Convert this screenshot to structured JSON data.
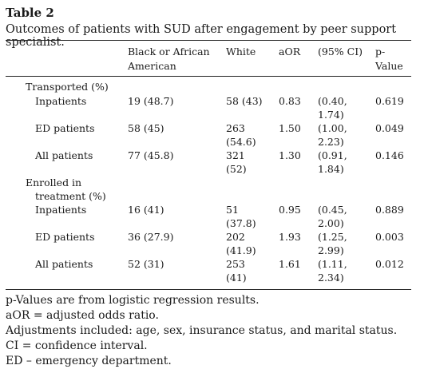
{
  "table": {
    "title": "Table 2",
    "caption": "Outcomes of patients with SUD after engagement by peer support specialist.",
    "headers": {
      "black_line1": "Black or African",
      "black_line2": "American",
      "white": "White",
      "aor": "aOR",
      "ci": "(95% CI)",
      "p_line1": "p-",
      "p_line2": "Value"
    },
    "sections": [
      {
        "label": "Transported (%)",
        "rows": [
          {
            "label": "Inpatients",
            "black": "19 (48.7)",
            "white_1": "58 (43)",
            "white_2": "",
            "aor": "0.83",
            "ci_1": "(0.40,",
            "ci_2": "1.74)",
            "p": "0.619"
          },
          {
            "label": "ED patients",
            "black": "58 (45)",
            "white_1": "263",
            "white_2": "(54.6)",
            "aor": "1.50",
            "ci_1": "(1.00,",
            "ci_2": "2.23)",
            "p": "0.049"
          },
          {
            "label": "All patients",
            "black": "77 (45.8)",
            "white_1": "321",
            "white_2": "(52)",
            "aor": "1.30",
            "ci_1": "(0.91,",
            "ci_2": "1.84)",
            "p": "0.146"
          }
        ]
      },
      {
        "label_line1": "Enrolled in",
        "label_line2": "treatment (%)",
        "rows": [
          {
            "label": "Inpatients",
            "black": "16 (41)",
            "white_1": "51",
            "white_2": "(37.8)",
            "aor": "0.95",
            "ci_1": "(0.45,",
            "ci_2": "2.00)",
            "p": "0.889"
          },
          {
            "label": "ED patients",
            "black": "36 (27.9)",
            "white_1": "202",
            "white_2": "(41.9)",
            "aor": "1.93",
            "ci_1": "(1.25,",
            "ci_2": "2.99)",
            "p": "0.003"
          },
          {
            "label": "All patients",
            "black": "52 (31)",
            "white_1": "253",
            "white_2": "(41)",
            "aor": "1.61",
            "ci_1": "(1.11,",
            "ci_2": "2.34)",
            "p": "0.012"
          }
        ]
      }
    ],
    "footnotes": [
      "p-Values are from logistic regression results.",
      "aOR = adjusted odds ratio.",
      "Adjustments included: age, sex, insurance status, and marital status.",
      "CI = confidence interval.",
      "ED – emergency department."
    ]
  }
}
